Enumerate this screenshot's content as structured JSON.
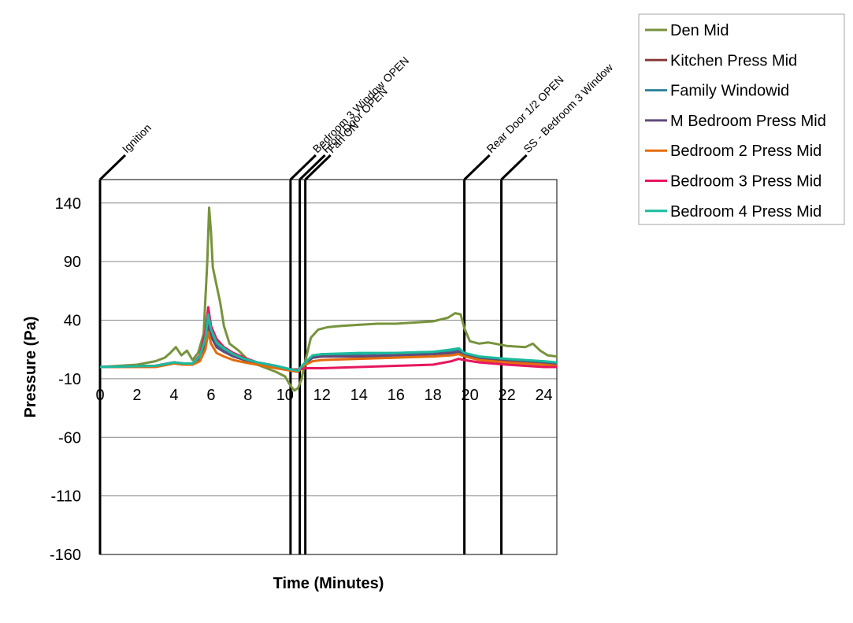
{
  "chart_data": {
    "type": "line",
    "xlabel": "Time (Minutes)",
    "ylabel": "Pressure (Pa)",
    "xlim": [
      0,
      24.7
    ],
    "ylim": [
      -160,
      160
    ],
    "xticks": [
      0,
      2,
      4,
      6,
      8,
      10,
      12,
      14,
      16,
      18,
      20,
      22,
      24
    ],
    "yticks": [
      140,
      90,
      40,
      -10,
      -60,
      -110,
      -160
    ],
    "grid": "horizontal",
    "legend_position": "top-right outside",
    "events": [
      {
        "label": "Ignition",
        "x": 0
      },
      {
        "label": "Bedroom 3 Window OPEN",
        "x": 10.3
      },
      {
        "label": "Front Door OPEN",
        "x": 10.8
      },
      {
        "label": "Fan ON",
        "x": 11.1
      },
      {
        "label": "Rear Door 1/2 OPEN",
        "x": 19.7
      },
      {
        "label": "SS - Bedroom 3 Window",
        "x": 21.7
      }
    ],
    "series": [
      {
        "name": "Den Mid",
        "color": "#77933C",
        "x": [
          0,
          2,
          3,
          3.5,
          3.8,
          4.1,
          4.4,
          4.7,
          5.0,
          5.3,
          5.6,
          5.8,
          5.9,
          6.0,
          6.1,
          6.3,
          6.5,
          6.7,
          7.0,
          7.5,
          8.0,
          8.5,
          9.0,
          9.5,
          10.0,
          10.3,
          10.5,
          10.7,
          10.9,
          11.1,
          11.4,
          11.8,
          12.3,
          13,
          14,
          15,
          16,
          17,
          18,
          18.8,
          19.2,
          19.5,
          19.7,
          20.0,
          20.5,
          21,
          22,
          23,
          23.4,
          23.8,
          24.2,
          24.7
        ],
        "values": [
          0,
          2,
          5,
          8,
          12,
          17,
          10,
          14,
          6,
          12,
          28,
          90,
          136,
          115,
          85,
          70,
          55,
          35,
          20,
          14,
          6,
          2,
          -1,
          -4,
          -8,
          -16,
          -20,
          -18,
          -10,
          5,
          25,
          32,
          34,
          35,
          36,
          37,
          37,
          38,
          39,
          42,
          46,
          45,
          33,
          22,
          20,
          21,
          18,
          17,
          20,
          14,
          10,
          9
        ]
      },
      {
        "name": "Kitchen Press Mid",
        "color": "#8B3A3A",
        "x": [
          0,
          3,
          4,
          4.5,
          5,
          5.4,
          5.7,
          5.85,
          6.0,
          6.3,
          6.7,
          7.2,
          7.8,
          8.5,
          9.5,
          10.3,
          10.7,
          11.1,
          11.5,
          12,
          14,
          16,
          18,
          19,
          19.4,
          19.7,
          20.5,
          22,
          24,
          24.7
        ],
        "values": [
          0,
          1,
          4,
          3,
          3,
          8,
          22,
          38,
          28,
          18,
          14,
          10,
          6,
          3,
          0,
          -3,
          -4,
          3,
          8,
          9,
          9,
          10,
          11,
          12,
          13,
          11,
          7,
          5,
          3,
          2
        ]
      },
      {
        "name": "Family Windowid",
        "color": "#31859C",
        "x": [
          0,
          3,
          4,
          4.5,
          5,
          5.4,
          5.7,
          5.85,
          6.0,
          6.3,
          6.7,
          7.2,
          7.8,
          8.5,
          9.5,
          10.3,
          10.7,
          11.1,
          11.5,
          12,
          14,
          16,
          18,
          19,
          19.4,
          19.7,
          20.5,
          22,
          24,
          24.7
        ],
        "values": [
          0,
          1,
          4,
          3,
          3,
          8,
          24,
          42,
          30,
          20,
          15,
          11,
          7,
          4,
          1,
          -2,
          -3,
          4,
          9,
          11,
          11,
          12,
          13,
          14,
          15,
          12,
          8,
          6,
          4,
          3
        ]
      },
      {
        "name": "M Bedroom Press Mid",
        "color": "#604A7B",
        "x": [
          0,
          3,
          4,
          4.5,
          5,
          5.4,
          5.7,
          5.85,
          6.0,
          6.3,
          6.7,
          7.2,
          7.8,
          8.5,
          9.5,
          10.3,
          10.7,
          11.1,
          11.5,
          12,
          14,
          16,
          18,
          19,
          19.4,
          19.7,
          20.5,
          22,
          24,
          24.7
        ],
        "values": [
          0,
          1,
          4,
          3,
          3,
          7,
          20,
          35,
          26,
          17,
          13,
          9,
          6,
          3,
          0,
          -3,
          -3,
          3,
          8,
          9,
          9,
          10,
          11,
          12,
          13,
          10,
          7,
          5,
          3,
          2
        ]
      },
      {
        "name": "Bedroom 2 Press Mid",
        "color": "#E46C0A",
        "x": [
          0,
          3,
          4,
          4.5,
          5,
          5.4,
          5.7,
          5.85,
          6.0,
          6.3,
          6.7,
          7.2,
          7.8,
          8.5,
          9.5,
          10.3,
          10.7,
          11.1,
          11.5,
          12,
          14,
          16,
          18,
          19,
          19.4,
          19.7,
          20.5,
          22,
          24,
          24.7
        ],
        "values": [
          0,
          0,
          3,
          2,
          2,
          5,
          15,
          30,
          20,
          12,
          9,
          6,
          4,
          2,
          -1,
          -3,
          -4,
          2,
          5,
          6,
          7,
          8,
          9,
          10,
          11,
          9,
          6,
          4,
          2,
          1
        ]
      },
      {
        "name": "Bedroom 3 Press Mid",
        "color": "#E7165E",
        "x": [
          0,
          3,
          4,
          4.5,
          5,
          5.4,
          5.7,
          5.85,
          6.0,
          6.3,
          6.7,
          7.2,
          7.8,
          8.5,
          9.5,
          10.3,
          10.7,
          11.1,
          11.5,
          12,
          14,
          16,
          18,
          19,
          19.4,
          19.7,
          20.5,
          22,
          24,
          24.7
        ],
        "values": [
          0,
          1,
          4,
          3,
          3,
          10,
          30,
          51,
          35,
          24,
          17,
          12,
          8,
          4,
          1,
          -2,
          -2,
          -1,
          -1,
          -1,
          0,
          1,
          2,
          5,
          7,
          6,
          4,
          2,
          0,
          0
        ]
      },
      {
        "name": "Bedroom 4 Press Mid",
        "color": "#1ABC9C",
        "x": [
          0,
          3,
          4,
          4.5,
          5,
          5.4,
          5.7,
          5.85,
          6.0,
          6.3,
          6.7,
          7.2,
          7.8,
          8.5,
          9.5,
          10.3,
          10.7,
          11.1,
          11.5,
          12,
          14,
          16,
          18,
          19,
          19.4,
          19.7,
          20.5,
          22,
          24,
          24.7
        ],
        "values": [
          0,
          1,
          4,
          3,
          3,
          9,
          25,
          45,
          32,
          21,
          16,
          11,
          7,
          4,
          1,
          -2,
          -3,
          4,
          10,
          11,
          12,
          12,
          13,
          15,
          16,
          12,
          9,
          7,
          5,
          4
        ]
      }
    ]
  }
}
